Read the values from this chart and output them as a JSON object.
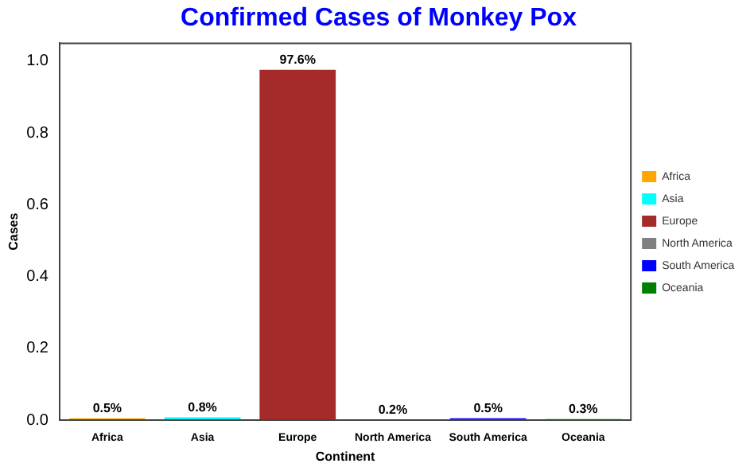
{
  "chart_data": {
    "type": "bar",
    "title": "Confirmed Cases of Monkey Pox",
    "xlabel": "Continent",
    "ylabel": "Cases",
    "categories": [
      "Africa",
      "Asia",
      "Europe",
      "North America",
      "South America",
      "Oceania"
    ],
    "series": [
      {
        "name": "Africa",
        "color": "#ffa500",
        "values": [
          0.005,
          null,
          null,
          null,
          null,
          null
        ],
        "value_labels": [
          "0.5%",
          null,
          null,
          null,
          null,
          null
        ]
      },
      {
        "name": "Asia",
        "color": "#00ffff",
        "values": [
          null,
          0.008,
          null,
          null,
          null,
          null
        ],
        "value_labels": [
          null,
          "0.8%",
          null,
          null,
          null,
          null
        ]
      },
      {
        "name": "Europe",
        "color": "#a52a2a",
        "values": [
          null,
          null,
          0.976,
          null,
          null,
          null
        ],
        "value_labels": [
          null,
          null,
          "97.6%",
          null,
          null,
          null
        ]
      },
      {
        "name": "North America",
        "color": "#808080",
        "values": [
          null,
          null,
          null,
          0.002,
          null,
          null
        ],
        "value_labels": [
          null,
          null,
          null,
          "0.2%",
          null,
          null
        ]
      },
      {
        "name": "South America",
        "color": "#0000ff",
        "values": [
          null,
          null,
          null,
          null,
          0.005,
          null
        ],
        "value_labels": [
          null,
          null,
          null,
          null,
          "0.5%",
          null
        ]
      },
      {
        "name": "Oceania",
        "color": "#008000",
        "values": [
          null,
          null,
          null,
          null,
          null,
          0.003
        ],
        "value_labels": [
          null,
          null,
          null,
          null,
          null,
          "0.3%"
        ]
      }
    ],
    "ylim": [
      0,
      1.05
    ],
    "yticks": [
      {
        "value": 0,
        "label": "0.0"
      },
      {
        "value": 0.2,
        "label": "0.2"
      },
      {
        "value": 0.4,
        "label": "0.4"
      },
      {
        "value": 0.6,
        "label": "0.6"
      },
      {
        "value": 0.8,
        "label": "0.8"
      },
      {
        "value": 1,
        "label": "1.0"
      }
    ],
    "grid": false,
    "legend": "right"
  }
}
